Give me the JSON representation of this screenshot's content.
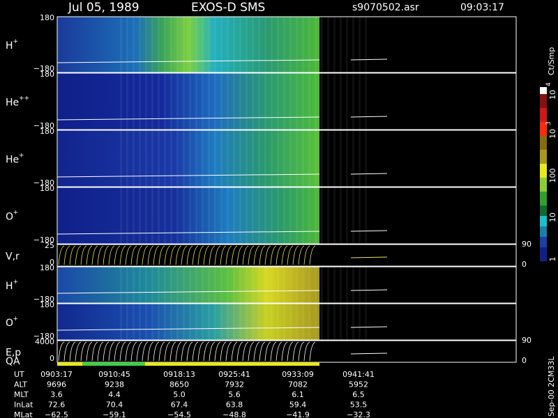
{
  "header": {
    "date": "Jul 05, 1989",
    "instrument": "EXOS-D SMS",
    "file": "s9070502.asr",
    "time": "09:03:17"
  },
  "panels": [
    {
      "label": "H",
      "sup": "+",
      "ymax": "180",
      "ymin": "−180"
    },
    {
      "label": "He",
      "sup": "++",
      "ymax": "180",
      "ymin": "−180"
    },
    {
      "label": "He",
      "sup": "+",
      "ymax": "180",
      "ymin": "−180"
    },
    {
      "label": "O",
      "sup": "+",
      "ymax": "180",
      "ymin": "−180"
    },
    {
      "label": "V,r",
      "ymax": "25",
      "ymin": "0",
      "rmax": "90",
      "rmin": "0"
    },
    {
      "label": "H",
      "sup": "+",
      "ymax": "180",
      "ymin": "−180"
    },
    {
      "label": "O",
      "sup": "+",
      "ymax": "180",
      "ymin": "−180"
    },
    {
      "label": "E,p",
      "ymax": "4000",
      "ymin": "0",
      "rmax": "90",
      "rmin": "0"
    }
  ],
  "qa_label": "QA",
  "colorbar": {
    "unit": "Ct/Smp",
    "labels": [
      {
        "base": "10",
        "sup": "4"
      },
      {
        "base": "10",
        "sup": "3"
      },
      {
        "base": "100"
      },
      {
        "base": "10"
      },
      {
        "base": "1"
      }
    ]
  },
  "table": {
    "rows": [
      {
        "name": "UT",
        "values": [
          "0903:17",
          "0910:45",
          "0918:13",
          "0925:41",
          "0933:09",
          "0941:41"
        ]
      },
      {
        "name": "ALT",
        "values": [
          "9696",
          "9238",
          "8650",
          "7932",
          "7082",
          "5952"
        ]
      },
      {
        "name": "MLT",
        "values": [
          "3.6",
          "4.4",
          "5.0",
          "5.6",
          "6.1",
          "6.5"
        ]
      },
      {
        "name": "InLat",
        "values": [
          "72.6",
          "70.4",
          "67.4",
          "63.8",
          "59.4",
          "53.5"
        ]
      },
      {
        "name": "MLat",
        "values": [
          "−62.5",
          "−59.1",
          "−54.5",
          "−48.8",
          "−41.9",
          "−32.3"
        ]
      }
    ]
  },
  "footer": "Sep-00 2CM33L"
}
